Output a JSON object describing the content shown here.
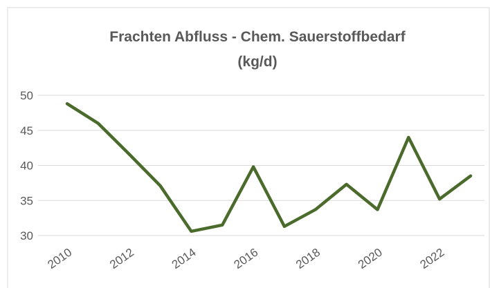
{
  "chart_data": {
    "type": "line",
    "title": [
      "Frachten Abfluss - Chem. Sauerstoffbedarf",
      "(kg/d)"
    ],
    "categories": [
      "2010",
      null,
      "2012",
      null,
      "2014",
      null,
      "2016",
      null,
      "2018",
      null,
      "2020",
      null,
      "2022",
      null
    ],
    "series": [
      {
        "name": "Chem. Sauerstoffbedarf",
        "color": "#4a6b2b",
        "values": [
          48.8,
          46.0,
          41.6,
          37.1,
          30.6,
          31.5,
          39.8,
          31.3,
          33.7,
          37.3,
          33.7,
          44.0,
          35.2,
          38.5
        ]
      }
    ],
    "ylim": [
      30,
      50
    ],
    "yticks": [
      30,
      35,
      40,
      45,
      50
    ],
    "grid": true
  }
}
